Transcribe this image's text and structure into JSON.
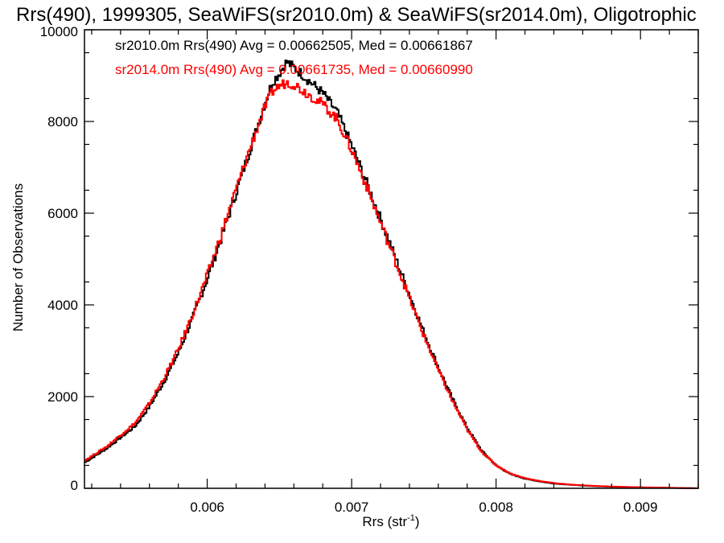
{
  "chart_data": {
    "type": "line",
    "title": "Rrs(490), 1999305, SeaWiFS(sr2010.0m) & SeaWiFS(sr2014.0m), Oligotrophic",
    "xlabel": "Rrs (str",
    "xlabel_sup": "-1",
    "xlabel_close": ")",
    "ylabel": "Number of Observations",
    "xlim": [
      0.00515,
      0.0094
    ],
    "ylim": [
      0,
      10000
    ],
    "xticks": [
      0.006,
      0.007,
      0.008,
      0.009
    ],
    "xtick_labels": [
      "0.006",
      "0.007",
      "0.008",
      "0.009"
    ],
    "yticks": [
      0,
      2000,
      4000,
      6000,
      8000,
      10000
    ],
    "ytick_labels": [
      "0",
      "2000",
      "4000",
      "6000",
      "8000",
      "10000"
    ],
    "grid": false,
    "legend_position": "top-left",
    "step_style": true,
    "series": [
      {
        "name": "sr2010.0m Rrs(490) Avg = 0.00662505, Med = 0.00661867",
        "color": "#000000",
        "x": [
          0.00515,
          0.0053,
          0.0055,
          0.0056,
          0.0057,
          0.0058,
          0.0059,
          0.006,
          0.0061,
          0.0062,
          0.0063,
          0.0064,
          0.00645,
          0.0065,
          0.00655,
          0.0066,
          0.00665,
          0.0067,
          0.0068,
          0.0069,
          0.007,
          0.0071,
          0.0072,
          0.0073,
          0.0074,
          0.0075,
          0.0076,
          0.0077,
          0.0078,
          0.0079,
          0.008,
          0.0081,
          0.0082,
          0.0083,
          0.0084,
          0.0085,
          0.0086,
          0.0087,
          0.0088,
          0.009,
          0.0092,
          0.0094
        ],
        "y": [
          560,
          860,
          1350,
          1780,
          2320,
          2950,
          3720,
          4560,
          5480,
          6440,
          7420,
          8400,
          8850,
          9050,
          9300,
          9180,
          9050,
          8900,
          8620,
          8200,
          7480,
          6700,
          5880,
          5050,
          4230,
          3400,
          2640,
          1940,
          1320,
          820,
          500,
          310,
          210,
          150,
          105,
          80,
          60,
          45,
          35,
          20,
          10,
          0
        ]
      },
      {
        "name": "sr2014.0m Rrs(490) Avg = 0.00661735, Med = 0.00660990",
        "color": "#ff0000",
        "x": [
          0.00515,
          0.0053,
          0.0055,
          0.0056,
          0.0057,
          0.0058,
          0.0059,
          0.006,
          0.0061,
          0.0062,
          0.0063,
          0.0064,
          0.00645,
          0.0065,
          0.00655,
          0.0066,
          0.00665,
          0.0067,
          0.0068,
          0.0069,
          0.007,
          0.0071,
          0.0072,
          0.0073,
          0.0074,
          0.0075,
          0.0076,
          0.0077,
          0.0078,
          0.0079,
          0.008,
          0.0081,
          0.0082,
          0.0083,
          0.0084,
          0.0085,
          0.0086,
          0.0087,
          0.0088,
          0.009,
          0.0092,
          0.0094
        ],
        "y": [
          600,
          900,
          1420,
          1850,
          2400,
          3030,
          3800,
          4640,
          5560,
          6520,
          7450,
          8320,
          8650,
          8780,
          8850,
          8820,
          8700,
          8600,
          8380,
          8050,
          7380,
          6620,
          5800,
          4980,
          4150,
          3330,
          2580,
          1890,
          1280,
          800,
          500,
          320,
          220,
          160,
          115,
          85,
          65,
          50,
          38,
          22,
          12,
          0
        ]
      }
    ]
  }
}
